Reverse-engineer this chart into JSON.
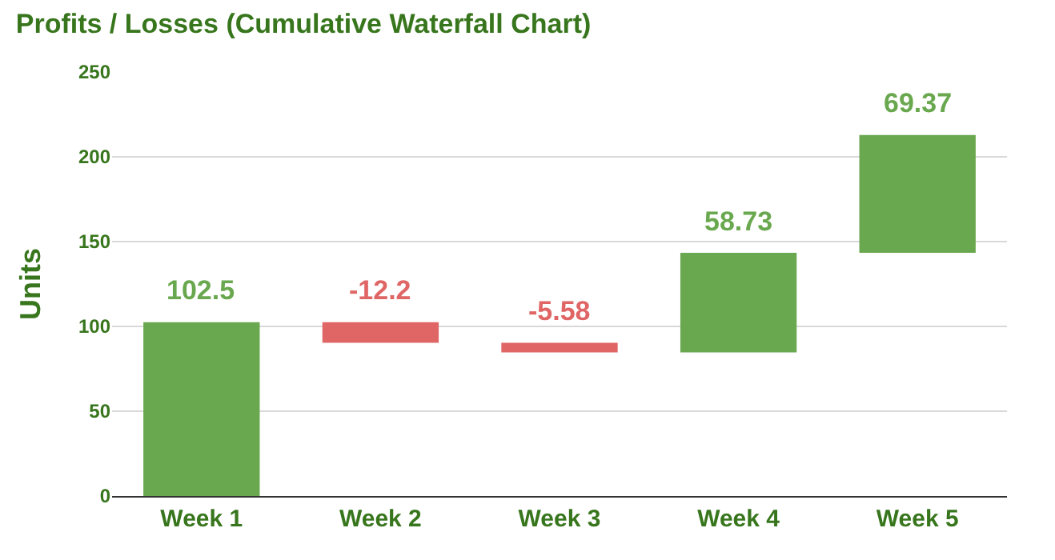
{
  "chart_data": {
    "type": "bar",
    "title": "Profits / Losses (Cumulative Waterfall Chart)",
    "ylabel": "Units",
    "categories": [
      "Week 1",
      "Week 2",
      "Week 3",
      "Week 4",
      "Week 5"
    ],
    "values": [
      102.5,
      -12.2,
      -5.58,
      58.73,
      69.37
    ],
    "base": [
      0,
      102.5,
      90.3,
      84.72,
      143.45
    ],
    "colors": [
      "#6aa84f",
      "#e06666",
      "#e06666",
      "#6aa84f",
      "#6aa84f"
    ],
    "ylim": [
      0,
      250
    ],
    "yticks": [
      0,
      50,
      100,
      150,
      200,
      250
    ],
    "grid": "y",
    "data_labels": true
  }
}
